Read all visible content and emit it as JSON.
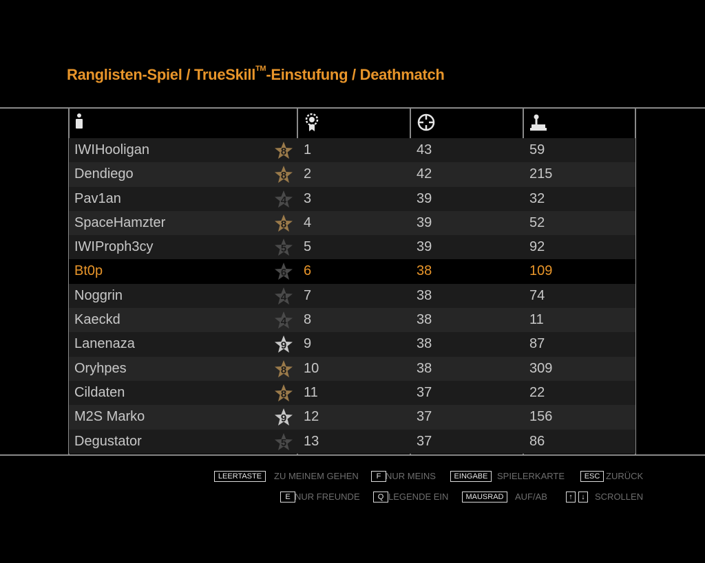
{
  "title": {
    "main": "Ranglisten-Spiel / TrueSkill",
    "tm": "TM",
    "rest": "-Einstufung / Deathmatch"
  },
  "columns": {
    "player_icon": "player-icon",
    "rank_icon": "rank-medal-icon",
    "kills_icon": "crosshair-icon",
    "games_icon": "joystick-icon"
  },
  "rows": [
    {
      "name": "IWIHooligan",
      "level": "8",
      "rank": "1",
      "kills": "43",
      "games": "59",
      "star": "#9a7a4a"
    },
    {
      "name": "Dendiego",
      "level": "8",
      "rank": "2",
      "kills": "42",
      "games": "215",
      "star": "#9a7a4a"
    },
    {
      "name": "Pav1an",
      "level": "4",
      "rank": "3",
      "kills": "39",
      "games": "32",
      "star": "#4a4a4a"
    },
    {
      "name": "SpaceHamzter",
      "level": "8",
      "rank": "4",
      "kills": "39",
      "games": "52",
      "star": "#9a7a4a"
    },
    {
      "name": "IWIProph3cy",
      "level": "5",
      "rank": "5",
      "kills": "39",
      "games": "92",
      "star": "#4a4a4a"
    },
    {
      "name": "Bt0p",
      "level": "6",
      "rank": "6",
      "kills": "38",
      "games": "109",
      "star": "#4a4a4a",
      "me": true
    },
    {
      "name": "Noggrin",
      "level": "4",
      "rank": "7",
      "kills": "38",
      "games": "74",
      "star": "#4a4a4a"
    },
    {
      "name": "Kaeckd",
      "level": "4",
      "rank": "8",
      "kills": "38",
      "games": "11",
      "star": "#4a4a4a"
    },
    {
      "name": "Lanenaza",
      "level": "9",
      "rank": "9",
      "kills": "38",
      "games": "87",
      "star": "#c8c8c8"
    },
    {
      "name": "Oryhpes",
      "level": "8",
      "rank": "10",
      "kills": "38",
      "games": "309",
      "star": "#9a7a4a"
    },
    {
      "name": "Cildaten",
      "level": "8",
      "rank": "11",
      "kills": "37",
      "games": "22",
      "star": "#9a7a4a"
    },
    {
      "name": "M2S Marko",
      "level": "9",
      "rank": "12",
      "kills": "37",
      "games": "156",
      "star": "#c8c8c8"
    },
    {
      "name": "Degustator",
      "level": "5",
      "rank": "13",
      "kills": "37",
      "games": "86",
      "star": "#4a4a4a"
    }
  ],
  "footer": {
    "row1": [
      {
        "key": "LEERTASTE",
        "label": "ZU MEINEM GEHEN"
      },
      {
        "key": "F",
        "label": "NUR MEINS"
      },
      {
        "key": "EINGABE",
        "label": "SPIELERKARTE"
      },
      {
        "key": "ESC",
        "label": "ZURÜCK"
      }
    ],
    "row2": [
      {
        "key": "E",
        "label": "NUR FREUNDE"
      },
      {
        "key": "Q",
        "label": "LEGENDE EIN"
      },
      {
        "key": "MAUSRAD",
        "label": "AUF/AB"
      },
      {
        "key_up": "↑",
        "key_down": "↓",
        "label": "SCROLLEN"
      }
    ]
  },
  "colors": {
    "accent": "#e8952a",
    "text": "#c8c8c8",
    "row_a": "#1c1c1c",
    "row_b": "#262626",
    "lines": "#8a8a8a"
  }
}
